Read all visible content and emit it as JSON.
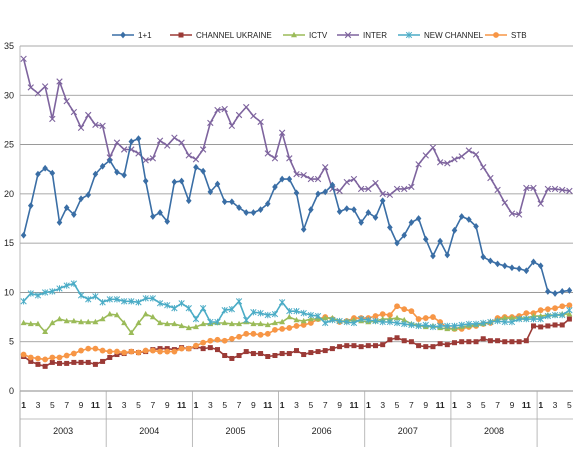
{
  "chart_data": {
    "type": "line",
    "title": "",
    "xlabel": "",
    "ylabel": "",
    "ylim": [
      0,
      35
    ],
    "y_ticks": [
      "0",
      "5",
      "10",
      "15",
      "20",
      "25",
      "30",
      "35"
    ],
    "grid": "horizontal",
    "legend_position": "top",
    "years": [
      "2003",
      "2004",
      "2005",
      "2006",
      "2007",
      "2008"
    ],
    "month_tick_labels": [
      "1",
      "3",
      "5",
      "7",
      "9",
      "11"
    ],
    "series": [
      {
        "name": "1+1",
        "color": "#3a6ea5",
        "marker": "diamond",
        "values": [
          15.8,
          18.8,
          22.0,
          22.6,
          22.1,
          17.1,
          18.6,
          17.9,
          19.5,
          19.9,
          22.0,
          22.8,
          23.4,
          22.2,
          21.9,
          25.3,
          25.6,
          21.3,
          17.7,
          18.1,
          17.2,
          21.2,
          21.3,
          19.3,
          22.7,
          22.3,
          20.2,
          21.0,
          19.2,
          19.2,
          18.6,
          18.1,
          18.1,
          18.4,
          19.0,
          20.7,
          21.5,
          21.5,
          20.1,
          16.4,
          18.4,
          20.0,
          20.2,
          20.9,
          18.2,
          18.5,
          18.4,
          17.1,
          18.1,
          17.6,
          19.3,
          16.6,
          15.0,
          15.8,
          17.1,
          17.5,
          15.4,
          13.7,
          15.2,
          13.8,
          16.3,
          17.7,
          17.4,
          16.7,
          13.6,
          13.2,
          12.9,
          12.7,
          12.5,
          12.4,
          12.2,
          13.1,
          12.7,
          10.1,
          9.9,
          10.1,
          10.2
        ]
      },
      {
        "name": "CHANNEL UKRAINE",
        "color": "#9b3a36",
        "marker": "square",
        "values": [
          3.5,
          3.0,
          2.7,
          2.5,
          2.9,
          2.8,
          2.8,
          2.9,
          2.9,
          2.9,
          2.7,
          3.0,
          3.4,
          3.7,
          3.8,
          4.0,
          3.9,
          4.0,
          4.2,
          4.3,
          4.3,
          4.2,
          4.4,
          4.3,
          4.5,
          4.3,
          4.4,
          4.2,
          3.6,
          3.3,
          3.6,
          4.0,
          3.8,
          3.8,
          3.5,
          3.6,
          3.8,
          3.8,
          4.1,
          3.7,
          3.9,
          4.0,
          4.1,
          4.3,
          4.5,
          4.6,
          4.6,
          4.5,
          4.6,
          4.6,
          4.7,
          5.2,
          5.4,
          5.1,
          5.0,
          4.6,
          4.5,
          4.5,
          4.8,
          4.7,
          4.9,
          5.0,
          5.0,
          5.0,
          5.3,
          5.1,
          5.1,
          5.0,
          5.0,
          5.0,
          5.1,
          6.6,
          6.5,
          6.6,
          6.7,
          6.7,
          7.3
        ]
      },
      {
        "name": "ICTV",
        "color": "#9bbb59",
        "marker": "triangle",
        "values": [
          6.9,
          6.8,
          6.8,
          6.0,
          6.9,
          7.3,
          7.1,
          7.1,
          7.0,
          7.0,
          7.0,
          7.3,
          7.8,
          7.7,
          6.9,
          5.9,
          6.9,
          7.8,
          7.5,
          6.9,
          6.8,
          6.8,
          6.6,
          6.4,
          6.5,
          6.8,
          6.8,
          6.9,
          6.9,
          6.8,
          6.8,
          7.0,
          6.8,
          6.8,
          6.7,
          6.9,
          7.0,
          7.5,
          7.2,
          7.1,
          7.3,
          7.3,
          7.4,
          7.4,
          7.1,
          7.1,
          7.2,
          7.1,
          7.0,
          7.1,
          7.3,
          7.3,
          7.4,
          7.2,
          6.8,
          6.7,
          6.5,
          6.6,
          6.4,
          6.3,
          6.3,
          6.5,
          6.6,
          6.7,
          6.8,
          7.0,
          7.2,
          7.4,
          7.4,
          7.4,
          7.4,
          7.6,
          7.6,
          7.7,
          7.7,
          7.8,
          7.8
        ]
      },
      {
        "name": "INTER",
        "color": "#7e649e",
        "marker": "x",
        "values": [
          33.7,
          30.8,
          30.2,
          30.9,
          27.6,
          31.4,
          29.4,
          28.3,
          26.7,
          28.0,
          27.0,
          26.9,
          23.7,
          25.2,
          24.5,
          24.5,
          24.1,
          23.4,
          23.6,
          25.4,
          24.9,
          25.7,
          25.2,
          23.9,
          23.5,
          24.5,
          27.2,
          28.5,
          28.6,
          26.9,
          28.0,
          28.8,
          27.9,
          27.3,
          24.1,
          23.6,
          26.2,
          23.6,
          22.0,
          21.9,
          21.5,
          21.5,
          22.7,
          20.5,
          20.3,
          21.2,
          21.5,
          20.5,
          20.5,
          21.1,
          20.0,
          19.9,
          20.5,
          20.5,
          20.7,
          23.0,
          23.9,
          24.7,
          23.2,
          23.1,
          23.5,
          23.8,
          24.4,
          24.0,
          22.7,
          21.6,
          20.4,
          19.1,
          18.0,
          17.9,
          20.6,
          20.6,
          19.0,
          20.5,
          20.5,
          20.4,
          20.3
        ]
      },
      {
        "name": "NEW CHANNEL",
        "color": "#4bacc6",
        "marker": "star",
        "values": [
          9.1,
          9.9,
          9.7,
          10.0,
          10.1,
          10.4,
          10.7,
          10.9,
          9.7,
          9.3,
          9.6,
          9.0,
          9.3,
          9.3,
          9.1,
          9.1,
          9.0,
          9.4,
          9.4,
          8.9,
          8.7,
          8.4,
          8.9,
          8.4,
          7.3,
          8.4,
          7.0,
          7.0,
          8.2,
          8.3,
          9.1,
          7.2,
          8.0,
          7.9,
          7.7,
          7.8,
          9.0,
          8.1,
          8.1,
          7.9,
          7.7,
          7.6,
          6.9,
          7.2,
          7.1,
          7.0,
          6.9,
          7.3,
          7.2,
          7.1,
          7.0,
          7.0,
          6.9,
          6.8,
          6.7,
          6.6,
          6.7,
          6.5,
          6.6,
          6.6,
          6.6,
          6.7,
          6.8,
          6.8,
          6.9,
          7.0,
          7.1,
          7.0,
          7.0,
          7.3,
          7.3,
          7.3,
          7.3,
          7.6,
          7.7,
          7.7,
          8.2
        ]
      },
      {
        "name": "STB",
        "color": "#f79646",
        "marker": "circle",
        "values": [
          3.7,
          3.4,
          3.3,
          3.2,
          3.4,
          3.4,
          3.6,
          3.8,
          4.1,
          4.3,
          4.3,
          4.1,
          4.0,
          4.0,
          3.9,
          4.0,
          3.9,
          4.1,
          4.1,
          4.0,
          4.0,
          4.0,
          4.3,
          4.3,
          4.6,
          4.9,
          5.1,
          5.2,
          5.1,
          5.3,
          5.5,
          5.8,
          5.8,
          5.7,
          5.8,
          6.2,
          6.3,
          6.4,
          6.6,
          6.7,
          6.9,
          7.3,
          7.5,
          7.3,
          7.0,
          7.1,
          7.4,
          7.4,
          7.4,
          7.6,
          7.8,
          7.7,
          8.6,
          8.3,
          8.1,
          7.3,
          7.4,
          7.5,
          7.0,
          6.4,
          6.3,
          6.3,
          6.5,
          6.6,
          6.8,
          6.9,
          7.4,
          7.5,
          7.5,
          7.6,
          7.9,
          7.9,
          8.2,
          8.3,
          8.4,
          8.6,
          8.7
        ]
      }
    ]
  }
}
